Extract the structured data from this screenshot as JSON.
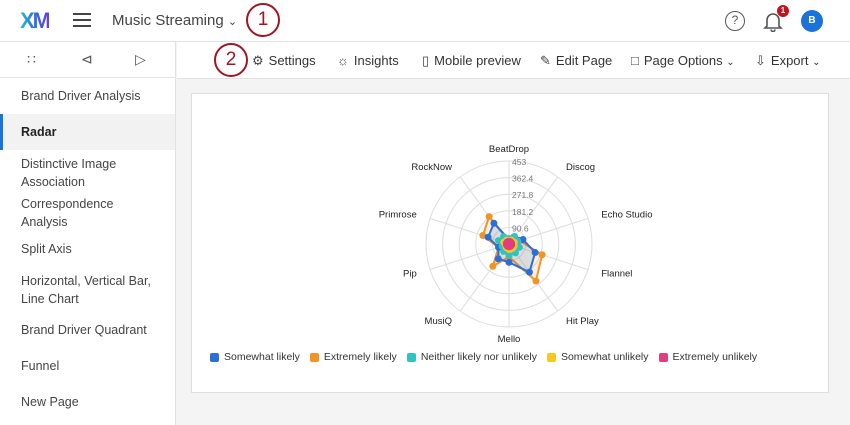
{
  "header": {
    "logo": "XM",
    "title": "Music Streaming",
    "help": "?",
    "notifications": "1",
    "avatar": "B"
  },
  "annotations": [
    "1",
    "2"
  ],
  "sidebar": {
    "items": [
      {
        "label": "Brand Driver Analysis"
      },
      {
        "label": "Radar",
        "active": true
      },
      {
        "label": "Distinctive Image Association"
      },
      {
        "label": "Correspondence Analysis"
      },
      {
        "label": "Split Axis"
      },
      {
        "label": "Horizontal, Vertical Bar, Line Chart"
      },
      {
        "label": "Brand Driver Quadrant"
      },
      {
        "label": "Funnel"
      },
      {
        "label": "New Page"
      }
    ]
  },
  "toolbar": {
    "settings": "Settings",
    "insights": "Insights",
    "mobile": "Mobile preview",
    "edit": "Edit Page",
    "options": "Page Options",
    "export": "Export"
  },
  "chart_data": {
    "type": "radar",
    "categories": [
      "BeatDrop",
      "Discog",
      "Echo Studio",
      "Flannel",
      "Hit Play",
      "Mello",
      "MusiQ",
      "Pip",
      "Primrose",
      "RockNow"
    ],
    "ticks": [
      "90.6",
      "181.2",
      "271.8",
      "362.4",
      "453"
    ],
    "rmax": 453,
    "series": [
      {
        "name": "Somewhat likely",
        "color": "#2a6fd6",
        "values": [
          25,
          50,
          80,
          150,
          190,
          100,
          100,
          60,
          120,
          140
        ]
      },
      {
        "name": "Extremely likely",
        "color": "#f29325",
        "values": [
          20,
          45,
          60,
          190,
          250,
          70,
          150,
          60,
          150,
          185
        ]
      },
      {
        "name": "Neither likely nor unlikely",
        "color": "#2fc4c0",
        "values": [
          30,
          50,
          50,
          60,
          60,
          60,
          50,
          40,
          60,
          50
        ]
      },
      {
        "name": "Somewhat unlikely",
        "color": "#f7c821",
        "values": [
          20,
          25,
          30,
          30,
          30,
          30,
          25,
          20,
          30,
          25
        ]
      },
      {
        "name": "Extremely unlikely",
        "color": "#e23d7e",
        "values": [
          15,
          15,
          15,
          15,
          15,
          15,
          15,
          15,
          15,
          15
        ]
      }
    ],
    "legend_position": "bottom"
  }
}
